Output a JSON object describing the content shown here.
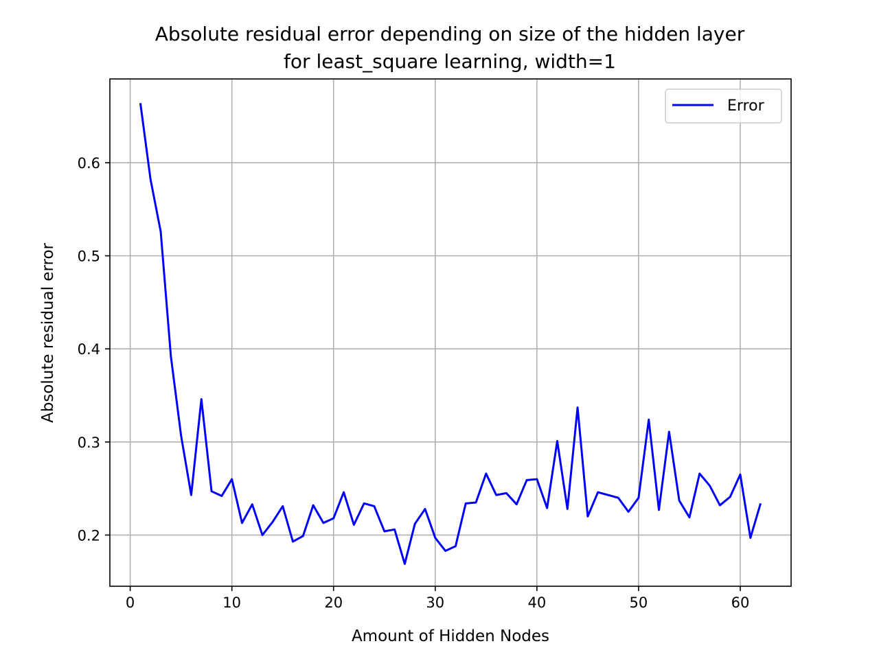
{
  "chart_data": {
    "type": "line",
    "title": "Absolute residual error depending on size of the hidden layer",
    "subtitle": "for least_square learning, width=1",
    "xlabel": "Amount of Hidden Nodes",
    "ylabel": "Absolute residual error",
    "xlim": [
      -2,
      65
    ],
    "ylim": [
      0.145,
      0.69
    ],
    "xticks": [
      0,
      10,
      20,
      30,
      40,
      50,
      60
    ],
    "yticks": [
      0.2,
      0.3,
      0.4,
      0.5,
      0.6
    ],
    "xtick_labels": [
      "0",
      "10",
      "20",
      "30",
      "40",
      "50",
      "60"
    ],
    "ytick_labels": [
      "0.2",
      "0.3",
      "0.4",
      "0.5",
      "0.6"
    ],
    "grid": true,
    "legend_position": "top-right",
    "series": [
      {
        "name": "Error",
        "color": "#0000ff",
        "x": [
          1,
          2,
          3,
          4,
          5,
          6,
          7,
          8,
          9,
          10,
          11,
          12,
          13,
          14,
          15,
          16,
          17,
          18,
          19,
          20,
          21,
          22,
          23,
          24,
          25,
          26,
          27,
          28,
          29,
          30,
          31,
          32,
          33,
          34,
          35,
          36,
          37,
          38,
          39,
          40,
          41,
          42,
          43,
          44,
          45,
          46,
          47,
          48,
          49,
          50,
          51,
          52,
          53,
          54,
          55,
          56,
          57,
          58,
          59,
          60,
          61,
          62
        ],
        "y": [
          0.664,
          0.582,
          0.526,
          0.392,
          0.307,
          0.243,
          0.346,
          0.247,
          0.242,
          0.26,
          0.213,
          0.233,
          0.2,
          0.214,
          0.231,
          0.193,
          0.199,
          0.232,
          0.213,
          0.218,
          0.246,
          0.211,
          0.234,
          0.231,
          0.204,
          0.206,
          0.169,
          0.212,
          0.228,
          0.197,
          0.183,
          0.188,
          0.234,
          0.235,
          0.266,
          0.243,
          0.245,
          0.233,
          0.259,
          0.26,
          0.229,
          0.301,
          0.228,
          0.337,
          0.22,
          0.246,
          0.243,
          0.24,
          0.225,
          0.24,
          0.324,
          0.227,
          0.311,
          0.237,
          0.219,
          0.266,
          0.253,
          0.232,
          0.241,
          0.265,
          0.197,
          0.234
        ]
      }
    ]
  }
}
